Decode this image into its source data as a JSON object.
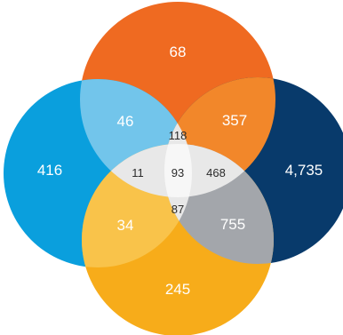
{
  "colors": {
    "top": "#ef6a21",
    "left": "#0a9fdd",
    "right": "#083a6b",
    "bottom": "#f7ac1a",
    "top_left": "#72c5eb",
    "top_right": "#f2872a",
    "bottom_left": "#f9c34a",
    "bottom_right": "#a3a6ab",
    "inner": "#e8e8e8",
    "center": "#f7f7f7"
  },
  "regions": {
    "top_only": "68",
    "left_only": "416",
    "right_only": "4,735",
    "bottom_only": "245",
    "top_left": "46",
    "top_right": "357",
    "bottom_left": "34",
    "bottom_right": "755",
    "top_inner": "118",
    "left_inner": "11",
    "right_inner": "468",
    "bottom_inner": "87",
    "center": "93"
  }
}
